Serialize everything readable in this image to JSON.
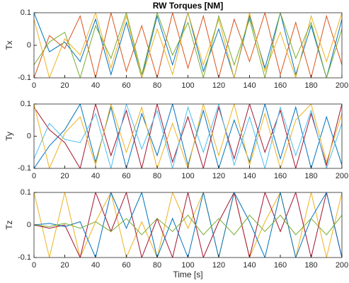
{
  "chart_data": [
    {
      "type": "line",
      "title": "RW Torques [NM]",
      "ylabel": "Tx",
      "x": [
        0,
        10,
        20,
        30,
        40,
        50,
        60,
        70,
        80,
        90,
        100,
        110,
        120,
        130,
        140,
        150,
        160,
        170,
        180,
        190,
        200
      ],
      "xlim": [
        0,
        200
      ],
      "xticks": [
        0,
        20,
        40,
        60,
        80,
        100,
        120,
        140,
        160,
        180,
        200
      ],
      "ylim": [
        -0.1,
        0.1
      ],
      "yticks": [
        -0.1,
        0,
        0.1
      ],
      "series": [
        {
          "color": "#0072BD",
          "values": [
            0.1,
            -0.02,
            0.01,
            -0.05,
            0.08,
            -0.09,
            0.07,
            -0.1,
            0.09,
            -0.06,
            0.1,
            -0.08,
            0.05,
            -0.1,
            0.09,
            -0.07,
            0.1,
            -0.09,
            0.06,
            -0.1,
            0.08
          ]
        },
        {
          "color": "#D95319",
          "values": [
            -0.1,
            0.03,
            -0.01,
            0.09,
            -0.1,
            0.1,
            -0.08,
            0.06,
            -0.1,
            0.1,
            -0.07,
            0.09,
            -0.1,
            0.08,
            -0.05,
            0.1,
            -0.09,
            0.07,
            -0.1,
            0.09,
            -0.06
          ]
        },
        {
          "color": "#EDB120",
          "values": [
            0.08,
            -0.1,
            0.02,
            -0.03,
            0.1,
            -0.07,
            0.09,
            -0.1,
            0.05,
            -0.09,
            0.1,
            -0.06,
            0.08,
            -0.1,
            0.1,
            -0.08,
            0.04,
            -0.1,
            0.09,
            -0.05,
            0.1
          ]
        },
        {
          "color": "#77AC30",
          "values": [
            -0.06,
            0.01,
            0.04,
            -0.1,
            0.06,
            -0.04,
            0.1,
            -0.09,
            0.1,
            -0.03,
            0.07,
            -0.1,
            0.09,
            -0.06,
            0.08,
            -0.1,
            0.1,
            -0.04,
            0.07,
            -0.1,
            0.05
          ]
        }
      ]
    },
    {
      "type": "line",
      "ylabel": "Ty",
      "x": [
        0,
        10,
        20,
        30,
        40,
        50,
        60,
        70,
        80,
        90,
        100,
        110,
        120,
        130,
        140,
        150,
        160,
        170,
        180,
        190,
        200
      ],
      "xlim": [
        0,
        200
      ],
      "xticks": [
        0,
        20,
        40,
        60,
        80,
        100,
        120,
        140,
        160,
        180,
        200
      ],
      "ylim": [
        -0.1,
        0.1
      ],
      "yticks": [
        -0.1,
        0,
        0.1
      ],
      "series": [
        {
          "color": "#0072BD",
          "values": [
            -0.1,
            -0.03,
            0.02,
            0.1,
            -0.08,
            0.09,
            -0.1,
            0.07,
            -0.06,
            0.1,
            -0.09,
            0.08,
            -0.1,
            0.05,
            -0.08,
            0.1,
            -0.07,
            0.09,
            -0.1,
            0.06,
            -0.09
          ]
        },
        {
          "color": "#A2142F",
          "values": [
            0.09,
            0.02,
            -0.02,
            -0.1,
            0.1,
            -0.06,
            0.08,
            -0.1,
            0.1,
            -0.08,
            0.06,
            -0.1,
            0.09,
            -0.07,
            0.1,
            -0.05,
            0.08,
            -0.1,
            0.07,
            -0.09,
            0.1
          ]
        },
        {
          "color": "#EDB120",
          "values": [
            0.1,
            -0.1,
            0.01,
            0.06,
            -0.09,
            0.1,
            -0.05,
            0.09,
            -0.1,
            0.04,
            -0.1,
            0.1,
            -0.06,
            0.1,
            -0.09,
            0.07,
            -0.1,
            0.05,
            0.1,
            -0.08,
            0.07
          ]
        },
        {
          "color": "#4DBEEE",
          "values": [
            -0.07,
            0.04,
            -0.01,
            -0.02,
            0.07,
            -0.1,
            0.1,
            -0.04,
            0.08,
            -0.1,
            0.09,
            -0.05,
            0.1,
            -0.09,
            0.06,
            -0.1,
            0.09,
            -0.06,
            0.08,
            -0.1,
            0.04
          ]
        }
      ]
    },
    {
      "type": "line",
      "ylabel": "Tz",
      "xlabel": "Time [s]",
      "x": [
        0,
        10,
        20,
        30,
        40,
        50,
        60,
        70,
        80,
        90,
        100,
        110,
        120,
        130,
        140,
        150,
        160,
        170,
        180,
        190,
        200
      ],
      "xlim": [
        0,
        200
      ],
      "xticks": [
        0,
        20,
        40,
        60,
        80,
        100,
        120,
        140,
        160,
        180,
        200
      ],
      "ylim": [
        -0.1,
        0.1
      ],
      "yticks": [
        -0.1,
        0,
        0.1
      ],
      "series": [
        {
          "color": "#EDB120",
          "values": [
            0.1,
            -0.1,
            0.1,
            -0.1,
            0.01,
            0.1,
            -0.1,
            0.01,
            -0.1,
            0.1,
            -0.01,
            0.1,
            -0.1,
            0.1,
            -0.1,
            0.01,
            0.1,
            -0.1,
            0.1,
            -0.1,
            0.1
          ]
        },
        {
          "color": "#A2142F",
          "values": [
            0,
            -0.01,
            0,
            -0.1,
            0.1,
            -0.02,
            0.1,
            -0.1,
            0.02,
            -0.1,
            0.1,
            -0.1,
            0.01,
            0.1,
            -0.1,
            0.1,
            -0.02,
            0.1,
            -0.1,
            0.1,
            -0.1
          ]
        },
        {
          "color": "#0072BD",
          "values": [
            0,
            0.005,
            -0.005,
            0.01,
            -0.1,
            0.1,
            -0.01,
            0.1,
            -0.1,
            0.02,
            -0.1,
            0.1,
            -0.1,
            0.1,
            0.01,
            -0.1,
            0.1,
            -0.1,
            0.02,
            0.1,
            -0.1
          ]
        },
        {
          "color": "#77AC30",
          "values": [
            0,
            -0.005,
            0.005,
            -0.01,
            0.01,
            -0.02,
            0.02,
            -0.03,
            0.02,
            -0.02,
            0.03,
            -0.03,
            0.02,
            -0.03,
            0.03,
            -0.02,
            0.03,
            -0.03,
            0.02,
            -0.03,
            0.03
          ]
        }
      ]
    }
  ]
}
